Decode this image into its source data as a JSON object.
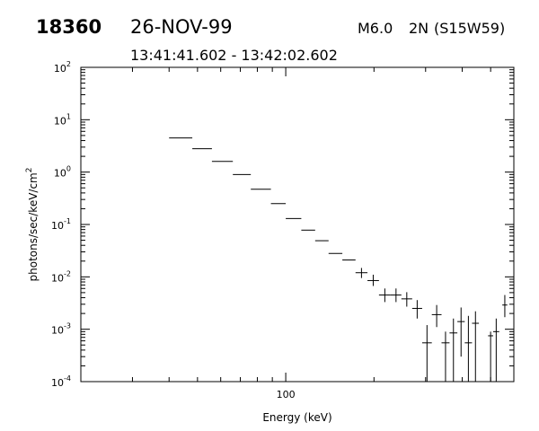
{
  "header": {
    "event_id": "18360",
    "date": "26-NOV-99",
    "flare_class": "M6.0",
    "flare_importance": "2N",
    "location": "(S15W59)",
    "time_range": "13:41:41.602 - 13:42:02.602"
  },
  "chart_data": {
    "type": "scatter",
    "xscale": "log",
    "yscale": "log",
    "xlabel": "Energy (keV)",
    "ylabel_main": "photons/sec/keV/cm",
    "ylabel_sup": "2",
    "xlim": [
      20,
      600
    ],
    "ylim": [
      0.0001,
      100
    ],
    "x_tick_labels": [
      {
        "value": 100,
        "label": "100"
      }
    ],
    "y_tick_labels": [
      {
        "value": 100,
        "base": "10",
        "exp": "2"
      },
      {
        "value": 10,
        "base": "10",
        "exp": "1"
      },
      {
        "value": 1,
        "base": "10",
        "exp": "0"
      },
      {
        "value": 0.1,
        "base": "10",
        "exp": "-1"
      },
      {
        "value": 0.01,
        "base": "10",
        "exp": "-2"
      },
      {
        "value": 0.001,
        "base": "10",
        "exp": "-3"
      },
      {
        "value": 0.0001,
        "base": "10",
        "exp": "-4"
      }
    ],
    "points": [
      {
        "x0": 40,
        "x1": 48,
        "y": 4.5
      },
      {
        "x0": 48,
        "x1": 56,
        "y": 2.8
      },
      {
        "x0": 56,
        "x1": 66,
        "y": 1.6
      },
      {
        "x0": 66,
        "x1": 76,
        "y": 0.9
      },
      {
        "x0": 76,
        "x1": 89,
        "y": 0.47
      },
      {
        "x0": 89,
        "x1": 100,
        "y": 0.25
      },
      {
        "x0": 100,
        "x1": 113,
        "y": 0.13
      },
      {
        "x0": 113,
        "x1": 126,
        "y": 0.078
      },
      {
        "x0": 126,
        "x1": 140,
        "y": 0.049
      },
      {
        "x0": 140,
        "x1": 156,
        "y": 0.028
      },
      {
        "x0": 156,
        "x1": 173,
        "y": 0.021
      },
      {
        "x0": 173,
        "x1": 190,
        "y": 0.012,
        "ylo": 0.0095,
        "yhi": 0.0148
      },
      {
        "x0": 190,
        "x1": 208,
        "y": 0.0085,
        "ylo": 0.0067,
        "yhi": 0.011
      },
      {
        "x0": 208,
        "x1": 228,
        "y": 0.0045,
        "ylo": 0.0033,
        "yhi": 0.006
      },
      {
        "x0": 228,
        "x1": 248,
        "y": 0.0045,
        "ylo": 0.0033,
        "yhi": 0.006
      },
      {
        "x0": 248,
        "x1": 270,
        "y": 0.0038,
        "ylo": 0.0027,
        "yhi": 0.0051
      },
      {
        "x0": 270,
        "x1": 292,
        "y": 0.0025,
        "ylo": 0.0016,
        "yhi": 0.0036
      },
      {
        "x0": 292,
        "x1": 315,
        "y": 0.00055,
        "ylo": 0.0001,
        "yhi": 0.0012
      },
      {
        "x0": 315,
        "x1": 340,
        "y": 0.0019,
        "ylo": 0.0011,
        "yhi": 0.0029
      },
      {
        "x0": 340,
        "x1": 362,
        "y": 0.00055,
        "ylo": 0.0001,
        "yhi": 0.0009
      },
      {
        "x0": 362,
        "x1": 385,
        "y": 0.00085,
        "ylo": 0.0001,
        "yhi": 0.0016
      },
      {
        "x0": 385,
        "x1": 408,
        "y": 0.0014,
        "ylo": 0.0003,
        "yhi": 0.0026
      },
      {
        "x0": 408,
        "x1": 432,
        "y": 0.00055,
        "ylo": 0.0001,
        "yhi": 0.0018
      },
      {
        "x0": 432,
        "x1": 456,
        "y": 0.0013,
        "ylo": 0.0001,
        "yhi": 0.0022
      },
      {
        "x0": 490,
        "x1": 510,
        "y": 0.00075,
        "ylo": 0.0001,
        "yhi": 0.0009
      },
      {
        "x0": 510,
        "x1": 535,
        "y": 0.0009,
        "ylo": 0.0001,
        "yhi": 0.0016
      },
      {
        "x0": 548,
        "x1": 570,
        "y": 0.0029,
        "ylo": 0.0017,
        "yhi": 0.0045
      }
    ]
  }
}
